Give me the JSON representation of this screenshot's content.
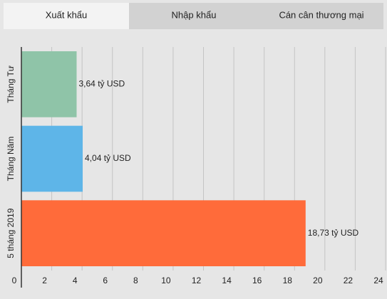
{
  "tabs": [
    "Xuất khẩu",
    "Nhập khẩu",
    "Cán cân thương mại"
  ],
  "chart_data": {
    "type": "bar",
    "orientation": "horizontal",
    "categories": [
      "Tháng Tư",
      "Tháng Năm",
      "5 tháng 2019"
    ],
    "values": [
      3.64,
      4.04,
      18.73
    ],
    "value_labels": [
      "3,64 tỷ USD",
      "4,04 tỷ USD",
      "18,73 tỷ USD"
    ],
    "colors": [
      "#8fc4a8",
      "#5eb5e8",
      "#ff6b3a"
    ],
    "xlim": [
      0,
      24
    ],
    "xticks": [
      0,
      2,
      4,
      6,
      8,
      10,
      12,
      14,
      16,
      18,
      20,
      22,
      24
    ],
    "grid": true
  }
}
